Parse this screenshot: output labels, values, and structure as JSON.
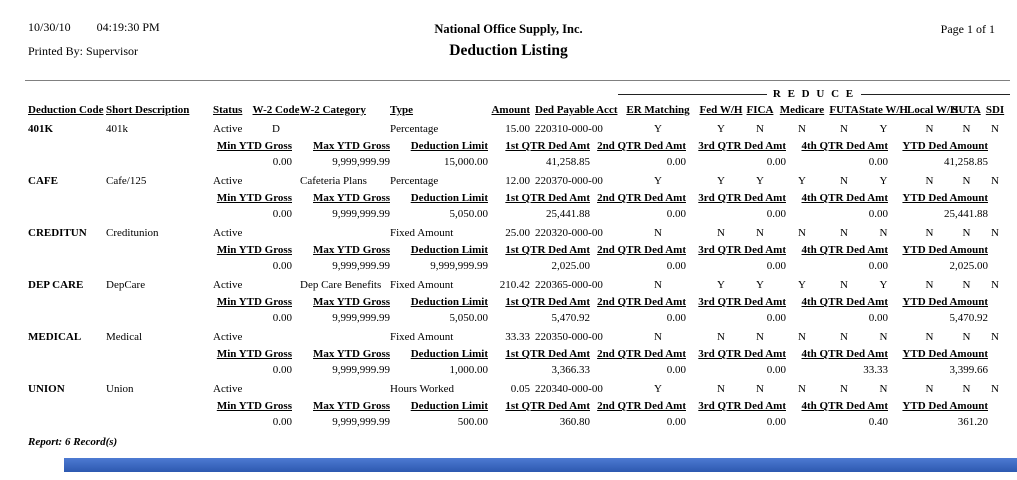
{
  "header": {
    "date": "10/30/10",
    "time": "04:19:30 PM",
    "printed_by": "Printed By: Supervisor",
    "company": "National Office Supply, Inc.",
    "title": "Deduction Listing",
    "page": "Page 1 of 1"
  },
  "table": {
    "reduce_label": "R E D U C E",
    "main_headers": [
      "Deduction Code",
      "Short Description",
      "Status",
      "W-2 Code",
      "W-2 Category",
      "Type",
      "Amount",
      "Ded Payable Acct",
      "ER Matching",
      "Fed W/H",
      "FICA",
      "Medicare",
      "FUTA",
      "State W/H",
      "Local W/H",
      "SUTA",
      "SDI"
    ],
    "sub_headers": [
      "Min YTD Gross",
      "Max YTD Gross",
      "Deduction Limit",
      "1st QTR Ded Amt",
      "2nd QTR Ded Amt",
      "3rd QTR Ded Amt",
      "4th QTR Ded Amt",
      "YTD Ded Amount"
    ],
    "records": [
      {
        "code": "401K",
        "short_description": "401k",
        "status": "Active",
        "w2_code": "D",
        "w2_category": "",
        "type": "Percentage",
        "amount": "15.00",
        "ded_payable_acct": "220310-000-00",
        "flags": [
          "Y",
          "Y",
          "N",
          "N",
          "N",
          "Y",
          "N",
          "N",
          "N"
        ],
        "detail": [
          "0.00",
          "9,999,999.99",
          "15,000.00",
          "41,258.85",
          "0.00",
          "0.00",
          "0.00",
          "41,258.85"
        ]
      },
      {
        "code": "CAFE",
        "short_description": "Cafe/125",
        "status": "Active",
        "w2_code": "",
        "w2_category": "Cafeteria Plans",
        "type": "Percentage",
        "amount": "12.00",
        "ded_payable_acct": "220370-000-00",
        "flags": [
          "Y",
          "Y",
          "Y",
          "Y",
          "N",
          "Y",
          "N",
          "N",
          "N"
        ],
        "detail": [
          "0.00",
          "9,999,999.99",
          "5,050.00",
          "25,441.88",
          "0.00",
          "0.00",
          "0.00",
          "25,441.88"
        ]
      },
      {
        "code": "CREDITUN",
        "short_description": "Creditunion",
        "status": "Active",
        "w2_code": "",
        "w2_category": "",
        "type": "Fixed Amount",
        "amount": "25.00",
        "ded_payable_acct": "220320-000-00",
        "flags": [
          "N",
          "N",
          "N",
          "N",
          "N",
          "N",
          "N",
          "N",
          "N"
        ],
        "detail": [
          "0.00",
          "9,999,999.99",
          "9,999,999.99",
          "2,025.00",
          "0.00",
          "0.00",
          "0.00",
          "2,025.00"
        ]
      },
      {
        "code": "DEP CARE",
        "short_description": "DepCare",
        "status": "Active",
        "w2_code": "",
        "w2_category": "Dep Care Benefits",
        "type": "Fixed Amount",
        "amount": "210.42",
        "ded_payable_acct": "220365-000-00",
        "flags": [
          "N",
          "Y",
          "Y",
          "Y",
          "N",
          "Y",
          "N",
          "N",
          "N"
        ],
        "detail": [
          "0.00",
          "9,999,999.99",
          "5,050.00",
          "5,470.92",
          "0.00",
          "0.00",
          "0.00",
          "5,470.92"
        ]
      },
      {
        "code": "MEDICAL",
        "short_description": "Medical",
        "status": "Active",
        "w2_code": "",
        "w2_category": "",
        "type": "Fixed Amount",
        "amount": "33.33",
        "ded_payable_acct": "220350-000-00",
        "flags": [
          "N",
          "N",
          "N",
          "N",
          "N",
          "N",
          "N",
          "N",
          "N"
        ],
        "detail": [
          "0.00",
          "9,999,999.99",
          "1,000.00",
          "3,366.33",
          "0.00",
          "0.00",
          "33.33",
          "3,399.66"
        ]
      },
      {
        "code": "UNION",
        "short_description": "Union",
        "status": "Active",
        "w2_code": "",
        "w2_category": "",
        "type": "Hours Worked",
        "amount": "0.05",
        "ded_payable_acct": "220340-000-00",
        "flags": [
          "Y",
          "N",
          "N",
          "N",
          "N",
          "N",
          "N",
          "N",
          "N"
        ],
        "detail": [
          "0.00",
          "9,999,999.99",
          "500.00",
          "360.80",
          "0.00",
          "0.00",
          "0.40",
          "361.20"
        ]
      }
    ]
  },
  "footer": {
    "summary": "Report: 6 Record(s)"
  },
  "colors": {
    "bottom_bar_top": "#4d7ad2",
    "bottom_bar_bottom": "#2d59b0"
  }
}
